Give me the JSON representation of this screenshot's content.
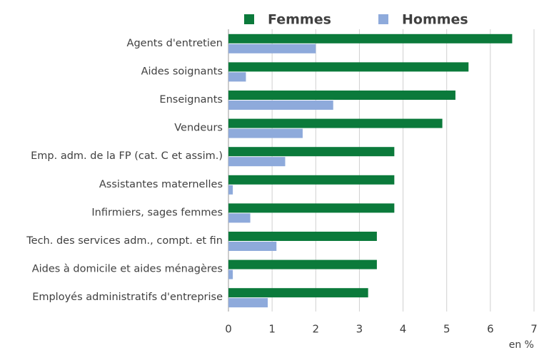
{
  "chart_data": {
    "type": "barh",
    "categories": [
      "Agents d'entretien",
      "Aides soignants",
      "Enseignants",
      "Vendeurs",
      "Emp. adm. de la FP (cat. C et assim.)",
      "Assistantes maternelles",
      "Infirmiers, sages femmes",
      "Tech. des services adm., compt. et fin",
      "Aides à domicile et aides ménagères",
      "Employés administratifs d'entreprise"
    ],
    "series": [
      {
        "name": "Femmes",
        "color": "#0b7a3b",
        "values": [
          6.5,
          5.5,
          5.2,
          4.9,
          3.8,
          3.8,
          3.8,
          3.4,
          3.4,
          3.2
        ]
      },
      {
        "name": "Hommes",
        "color": "#8eaadb",
        "values": [
          2.0,
          0.4,
          2.4,
          1.7,
          1.3,
          0.1,
          0.5,
          1.1,
          0.1,
          0.9
        ]
      }
    ],
    "xlabel": "en %",
    "xlim": [
      0,
      7
    ],
    "xticks": [
      0,
      1,
      2,
      3,
      4,
      5,
      6,
      7
    ],
    "grid": true,
    "legend": "top"
  }
}
